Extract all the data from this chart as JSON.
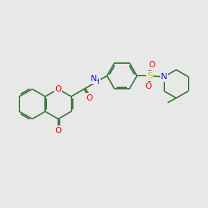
{
  "background_color": "#e8e8e8",
  "bond_color": "#3a7a3a",
  "atom_colors": {
    "O": "#ff0000",
    "N": "#0000ee",
    "S": "#cccc00",
    "C": "#3a7a3a"
  },
  "line_width": 1.4,
  "figsize": [
    3.0,
    3.0
  ],
  "dpi": 100,
  "xlim": [
    0,
    10
  ],
  "ylim": [
    1.5,
    8.5
  ]
}
